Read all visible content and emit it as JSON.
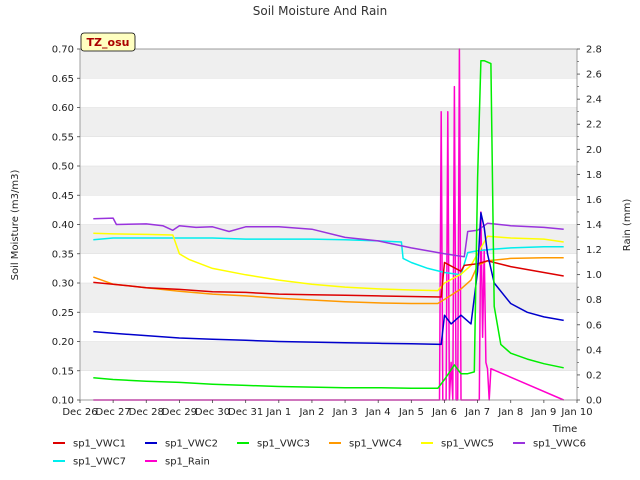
{
  "chart_data": {
    "type": "line",
    "title": "Soil Moisture And Rain",
    "xlabel": "Time",
    "ylabel": "Soil Moisture (m3/m3)",
    "y2label": "Rain (mm)",
    "badge": "TZ_osu",
    "x_tick_labels": [
      "Dec 26",
      "Dec 27",
      "Dec 28",
      "Dec 29",
      "Dec 30",
      "Dec 31",
      "Jan 1",
      "Jan 2",
      "Jan 3",
      "Jan 4",
      "Jan 5",
      "Jan 6",
      "Jan 7",
      "Jan 8",
      "Jan 9",
      "Jan 10"
    ],
    "xlim": [
      0,
      15
    ],
    "ylim": [
      0.1,
      0.7
    ],
    "y2lim": [
      0,
      2.8
    ],
    "y_ticks": [
      "0.10",
      "0.15",
      "0.20",
      "0.25",
      "0.30",
      "0.35",
      "0.40",
      "0.45",
      "0.50",
      "0.55",
      "0.60",
      "0.65",
      "0.70"
    ],
    "y2_ticks": [
      "0.0",
      "0.2",
      "0.4",
      "0.6",
      "0.8",
      "1.0",
      "1.2",
      "1.4",
      "1.6",
      "1.8",
      "2.0",
      "2.2",
      "2.4",
      "2.6",
      "2.8"
    ],
    "grid": "horizontal bands",
    "legend": "bottom",
    "series": [
      {
        "name": "sp1_VWC1",
        "color": "#dd0000",
        "axis": "left",
        "x": [
          0.4,
          1.0,
          2.0,
          3.0,
          4.0,
          5.0,
          6.0,
          7.0,
          8.0,
          9.0,
          10.0,
          10.9,
          11.0,
          11.5,
          11.6,
          12.0,
          12.3,
          13.0,
          14.0,
          14.6
        ],
        "y": [
          0.301,
          0.298,
          0.292,
          0.289,
          0.285,
          0.284,
          0.281,
          0.28,
          0.279,
          0.278,
          0.277,
          0.276,
          0.335,
          0.32,
          0.33,
          0.333,
          0.338,
          0.328,
          0.318,
          0.312
        ]
      },
      {
        "name": "sp1_VWC2",
        "color": "#0000cc",
        "axis": "left",
        "x": [
          0.4,
          1.0,
          2.0,
          3.0,
          4.0,
          5.0,
          6.0,
          7.0,
          8.0,
          9.0,
          10.0,
          10.9,
          11.0,
          11.2,
          11.5,
          11.8,
          12.0,
          12.1,
          12.2,
          12.3,
          12.5,
          13.0,
          13.5,
          14.0,
          14.6
        ],
        "y": [
          0.217,
          0.214,
          0.21,
          0.206,
          0.204,
          0.202,
          0.2,
          0.199,
          0.198,
          0.197,
          0.196,
          0.195,
          0.245,
          0.23,
          0.245,
          0.23,
          0.32,
          0.42,
          0.395,
          0.35,
          0.3,
          0.265,
          0.25,
          0.242,
          0.236
        ]
      },
      {
        "name": "sp1_VWC3",
        "color": "#00ee00",
        "axis": "left",
        "x": [
          0.4,
          1.0,
          2.0,
          3.0,
          4.0,
          5.0,
          6.0,
          7.0,
          8.0,
          9.0,
          10.0,
          10.8,
          11.0,
          11.3,
          11.5,
          11.7,
          11.9,
          12.0,
          12.1,
          12.2,
          12.4,
          12.5,
          12.7,
          13.0,
          13.5,
          14.0,
          14.6
        ],
        "y": [
          0.138,
          0.135,
          0.132,
          0.13,
          0.127,
          0.125,
          0.123,
          0.122,
          0.121,
          0.121,
          0.12,
          0.12,
          0.135,
          0.16,
          0.145,
          0.145,
          0.148,
          0.48,
          0.68,
          0.68,
          0.675,
          0.26,
          0.195,
          0.18,
          0.17,
          0.162,
          0.155
        ]
      },
      {
        "name": "sp1_VWC4",
        "color": "#ff9900",
        "axis": "left",
        "x": [
          0.4,
          1.0,
          2.0,
          3.0,
          4.0,
          5.0,
          6.0,
          7.0,
          8.0,
          9.0,
          10.0,
          10.8,
          11.0,
          11.5,
          11.8,
          12.0,
          12.3,
          13.0,
          14.0,
          14.6
        ],
        "y": [
          0.31,
          0.298,
          0.292,
          0.286,
          0.281,
          0.278,
          0.274,
          0.271,
          0.268,
          0.266,
          0.265,
          0.265,
          0.272,
          0.29,
          0.305,
          0.33,
          0.338,
          0.342,
          0.343,
          0.343
        ]
      },
      {
        "name": "sp1_VWC5",
        "color": "#ffff00",
        "axis": "left",
        "x": [
          0.4,
          1.0,
          2.0,
          2.8,
          3.0,
          3.3,
          4.0,
          5.0,
          6.0,
          7.0,
          8.0,
          9.0,
          10.0,
          10.8,
          11.0,
          11.5,
          11.8,
          12.0,
          12.3,
          13.0,
          14.0,
          14.6
        ],
        "y": [
          0.385,
          0.384,
          0.383,
          0.382,
          0.35,
          0.34,
          0.325,
          0.314,
          0.305,
          0.298,
          0.293,
          0.29,
          0.288,
          0.287,
          0.3,
          0.315,
          0.33,
          0.35,
          0.38,
          0.377,
          0.375,
          0.37
        ]
      },
      {
        "name": "sp1_VWC6",
        "color": "#9933dd",
        "axis": "left",
        "x": [
          0.4,
          1.0,
          1.1,
          2.0,
          2.5,
          2.8,
          3.0,
          3.5,
          4.0,
          4.5,
          5.0,
          6.0,
          7.0,
          8.0,
          9.0,
          10.0,
          11.0,
          11.6,
          11.7,
          12.0,
          12.3,
          13.0,
          14.0,
          14.6
        ],
        "y": [
          0.41,
          0.411,
          0.4,
          0.401,
          0.398,
          0.39,
          0.398,
          0.395,
          0.396,
          0.388,
          0.396,
          0.396,
          0.392,
          0.378,
          0.372,
          0.36,
          0.35,
          0.345,
          0.388,
          0.39,
          0.402,
          0.398,
          0.395,
          0.392
        ]
      },
      {
        "name": "sp1_VWC7",
        "color": "#00eeee",
        "axis": "left",
        "x": [
          0.4,
          1.0,
          2.0,
          3.0,
          4.0,
          5.0,
          6.0,
          7.0,
          8.0,
          9.0,
          9.7,
          9.75,
          10.0,
          10.5,
          11.0,
          11.5,
          11.7,
          12.0,
          12.5,
          13.0,
          14.0,
          14.6
        ],
        "y": [
          0.374,
          0.377,
          0.377,
          0.377,
          0.377,
          0.375,
          0.375,
          0.375,
          0.374,
          0.372,
          0.37,
          0.342,
          0.335,
          0.325,
          0.318,
          0.314,
          0.352,
          0.355,
          0.358,
          0.36,
          0.362,
          0.362
        ]
      },
      {
        "name": "sp1_Rain",
        "color": "#ff00cc",
        "axis": "right",
        "x": [
          0.4,
          10.85,
          10.9,
          10.95,
          11.0,
          11.05,
          11.1,
          11.15,
          11.2,
          11.25,
          11.3,
          11.35,
          11.4,
          11.45,
          11.5,
          11.55,
          11.6,
          11.65,
          11.7,
          11.75,
          11.8,
          11.85,
          11.9,
          11.95,
          12.0,
          12.05,
          12.1,
          12.15,
          12.2,
          12.25,
          12.3,
          12.35,
          12.4,
          14.6
        ],
        "y": [
          0,
          0,
          2.3,
          0,
          0,
          0,
          2.3,
          0,
          0.3,
          0,
          2.5,
          0,
          0,
          2.8,
          0,
          0,
          0,
          0,
          0,
          0,
          0,
          0,
          0,
          0,
          0,
          0,
          1.5,
          0.5,
          1.2,
          0.3,
          0.25,
          0,
          0.25,
          0
        ]
      }
    ]
  }
}
